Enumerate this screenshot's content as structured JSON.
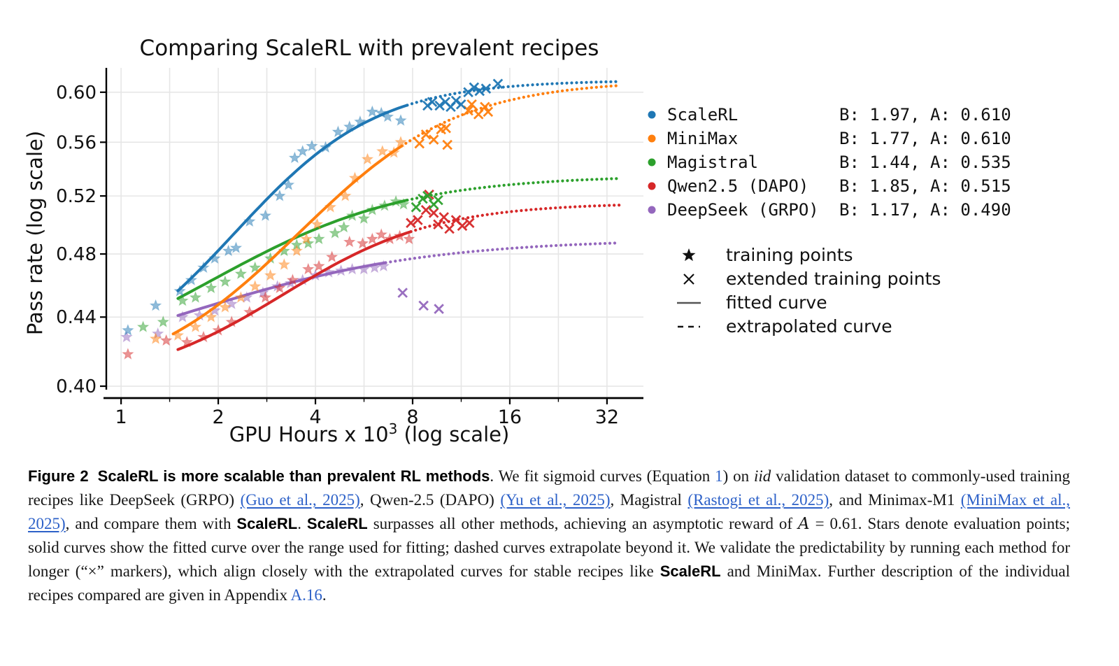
{
  "figure": {
    "title": "Comparing ScaleRL with prevalent recipes",
    "y_label": "Pass rate (log scale)",
    "x_label": {
      "main": "GPU Hours x 10",
      "sup": "3",
      "suffix": " (log scale)"
    }
  },
  "chart_data": {
    "type": "line+scatter",
    "title": "Comparing ScaleRL with prevalent recipes",
    "xlabel": "GPU Hours x 10^3 (log scale)",
    "ylabel": "Pass rate (log scale)",
    "log_x": true,
    "log_y": true,
    "x_range": [
      0.9,
      41.5
    ],
    "y_range": [
      0.3935,
      0.6205
    ],
    "x_ticks": [
      1,
      2,
      4,
      8,
      16,
      32
    ],
    "x_tick_labels": [
      "1",
      "2",
      "4",
      "8",
      "16",
      "32"
    ],
    "x_minor_gridlines": [
      1,
      1.414,
      2,
      2.828,
      4,
      5.657,
      8,
      11.314,
      16,
      22.627,
      32
    ],
    "y_ticks": [
      0.4,
      0.44,
      0.48,
      0.52,
      0.56,
      0.6
    ],
    "y_tick_labels": [
      "0.40",
      "0.44",
      "0.48",
      "0.52",
      "0.56",
      "0.60"
    ],
    "grid": true,
    "legend_position": "right",
    "series": [
      {
        "name": "ScaleRL",
        "params_label": "B: 1.97, A: 0.610",
        "B": 1.97,
        "A": 0.61,
        "color": "#1f77b4",
        "sigmoid": {
          "R0": 0.4,
          "Cmid": 2.5
        },
        "fit_range": [
          1.5,
          7.7
        ],
        "extrapolate_to": 35,
        "training_points": [
          [
            1.05,
            0.432
          ],
          [
            1.28,
            0.447
          ],
          [
            1.52,
            0.456
          ],
          [
            1.65,
            0.463
          ],
          [
            1.8,
            0.471
          ],
          [
            1.95,
            0.477
          ],
          [
            2.15,
            0.482
          ],
          [
            2.27,
            0.484
          ],
          [
            2.5,
            0.502
          ],
          [
            2.8,
            0.506
          ],
          [
            3.1,
            0.52
          ],
          [
            3.3,
            0.528
          ],
          [
            3.45,
            0.548
          ],
          [
            3.65,
            0.553
          ],
          [
            3.9,
            0.557
          ],
          [
            4.3,
            0.556
          ],
          [
            4.7,
            0.568
          ],
          [
            5.1,
            0.572
          ],
          [
            5.5,
            0.576
          ],
          [
            6.0,
            0.584
          ],
          [
            6.4,
            0.583
          ],
          [
            6.7,
            0.58
          ],
          [
            7.35,
            0.577
          ]
        ],
        "extended_points": [
          [
            8.9,
            0.589
          ],
          [
            9.2,
            0.592
          ],
          [
            9.7,
            0.589
          ],
          [
            10.1,
            0.592
          ],
          [
            10.5,
            0.588
          ],
          [
            10.9,
            0.593
          ],
          [
            11.3,
            0.59
          ],
          [
            11.9,
            0.6
          ],
          [
            12.4,
            0.604
          ],
          [
            12.9,
            0.601
          ],
          [
            13.5,
            0.603
          ],
          [
            14.7,
            0.607
          ]
        ]
      },
      {
        "name": "MiniMax",
        "params_label": "B: 1.77, A: 0.610",
        "B": 1.77,
        "A": 0.61,
        "color": "#ff7f0e",
        "sigmoid": {
          "R0": 0.4,
          "Cmid": 4.0
        },
        "fit_range": [
          1.45,
          7.4
        ],
        "extrapolate_to": 35,
        "training_points": [
          [
            1.28,
            0.427
          ],
          [
            1.5,
            0.429
          ],
          [
            1.7,
            0.434
          ],
          [
            1.9,
            0.44
          ],
          [
            2.1,
            0.446
          ],
          [
            2.35,
            0.452
          ],
          [
            2.6,
            0.459
          ],
          [
            2.9,
            0.466
          ],
          [
            3.2,
            0.473
          ],
          [
            3.5,
            0.482
          ],
          [
            3.75,
            0.49
          ],
          [
            4.05,
            0.5
          ],
          [
            4.45,
            0.512
          ],
          [
            4.95,
            0.52
          ],
          [
            5.3,
            0.533
          ],
          [
            5.8,
            0.547
          ],
          [
            6.45,
            0.553
          ],
          [
            7.0,
            0.552
          ],
          [
            7.35,
            0.56
          ]
        ],
        "extended_points": [
          [
            8.4,
            0.559
          ],
          [
            8.8,
            0.566
          ],
          [
            9.3,
            0.562
          ],
          [
            9.8,
            0.57
          ],
          [
            10.15,
            0.571
          ],
          [
            10.25,
            0.558
          ],
          [
            11.9,
            0.585
          ],
          [
            12.2,
            0.59
          ],
          [
            12.8,
            0.582
          ],
          [
            13.4,
            0.588
          ],
          [
            13.7,
            0.584
          ]
        ]
      },
      {
        "name": "Magistral",
        "params_label": "B: 1.44, A: 0.535",
        "B": 1.44,
        "A": 0.535,
        "color": "#2ca02c",
        "sigmoid": {
          "R0": 0.4,
          "Cmid": 2.1
        },
        "fit_range": [
          1.5,
          7.7
        ],
        "extrapolate_to": 35,
        "training_points": [
          [
            1.17,
            0.434
          ],
          [
            1.35,
            0.437
          ],
          [
            1.55,
            0.45
          ],
          [
            1.7,
            0.452
          ],
          [
            1.9,
            0.458
          ],
          [
            2.1,
            0.462
          ],
          [
            2.35,
            0.467
          ],
          [
            2.6,
            0.471
          ],
          [
            2.9,
            0.477
          ],
          [
            3.2,
            0.482
          ],
          [
            3.5,
            0.486
          ],
          [
            3.8,
            0.487
          ],
          [
            4.1,
            0.49
          ],
          [
            4.6,
            0.494
          ],
          [
            4.9,
            0.498
          ],
          [
            5.2,
            0.506
          ],
          [
            5.65,
            0.504
          ],
          [
            6.0,
            0.51
          ],
          [
            6.55,
            0.513
          ],
          [
            7.1,
            0.516
          ],
          [
            7.5,
            0.514
          ]
        ],
        "extended_points": [
          [
            8.2,
            0.512
          ],
          [
            8.6,
            0.518
          ],
          [
            8.9,
            0.52
          ],
          [
            9.3,
            0.514
          ],
          [
            9.6,
            0.517
          ]
        ]
      },
      {
        "name": "Qwen2.5 (DAPO)",
        "params_label": "B: 1.85, A: 0.515",
        "B": 1.85,
        "A": 0.515,
        "color": "#d62728",
        "sigmoid": {
          "R0": 0.4,
          "Cmid": 3.4
        },
        "fit_range": [
          1.5,
          7.9
        ],
        "extrapolate_to": 35,
        "training_points": [
          [
            1.05,
            0.418
          ],
          [
            1.38,
            0.426
          ],
          [
            1.6,
            0.425
          ],
          [
            1.8,
            0.428
          ],
          [
            2.0,
            0.432
          ],
          [
            2.2,
            0.437
          ],
          [
            2.5,
            0.443
          ],
          [
            2.8,
            0.452
          ],
          [
            3.1,
            0.458
          ],
          [
            3.4,
            0.463
          ],
          [
            3.8,
            0.47
          ],
          [
            4.1,
            0.472
          ],
          [
            4.5,
            0.478
          ],
          [
            5.1,
            0.488
          ],
          [
            5.6,
            0.487
          ],
          [
            6.0,
            0.49
          ],
          [
            6.4,
            0.493
          ],
          [
            6.8,
            0.49
          ],
          [
            7.3,
            0.492
          ],
          [
            7.8,
            0.49
          ]
        ],
        "extended_points": [
          [
            7.9,
            0.501
          ],
          [
            8.3,
            0.503
          ],
          [
            8.8,
            0.51
          ],
          [
            9.0,
            0.521
          ],
          [
            9.3,
            0.508
          ],
          [
            9.6,
            0.5
          ],
          [
            10.0,
            0.505
          ],
          [
            10.4,
            0.497
          ],
          [
            10.9,
            0.503
          ],
          [
            11.4,
            0.499
          ],
          [
            12.0,
            0.501
          ]
        ]
      },
      {
        "name": "DeepSeek (GRPO)",
        "params_label": "B: 1.17, A: 0.490",
        "B": 1.17,
        "A": 0.49,
        "color": "#9467bd",
        "sigmoid": {
          "R0": 0.4,
          "Cmid": 1.75
        },
        "fit_range": [
          1.5,
          6.6
        ],
        "extrapolate_to": 35,
        "training_points": [
          [
            1.04,
            0.428
          ],
          [
            1.3,
            0.43
          ],
          [
            1.55,
            0.44
          ],
          [
            1.75,
            0.441
          ],
          [
            1.95,
            0.444
          ],
          [
            2.2,
            0.448
          ],
          [
            2.45,
            0.452
          ],
          [
            2.75,
            0.455
          ],
          [
            3.05,
            0.459
          ],
          [
            3.35,
            0.461
          ],
          [
            3.65,
            0.463
          ],
          [
            4.0,
            0.466
          ],
          [
            4.4,
            0.468
          ],
          [
            4.8,
            0.469
          ],
          [
            5.2,
            0.47
          ],
          [
            5.65,
            0.47
          ],
          [
            6.1,
            0.471
          ],
          [
            6.5,
            0.472
          ]
        ],
        "extended_points": [
          [
            7.45,
            0.455
          ],
          [
            8.65,
            0.447
          ],
          [
            9.65,
            0.445
          ]
        ]
      }
    ],
    "legend_markers": [
      {
        "glyph": "star",
        "label": "training points"
      },
      {
        "glyph": "x",
        "label": "extended training points"
      },
      {
        "glyph": "solid-line",
        "label": "fitted curve"
      },
      {
        "glyph": "dashed-line",
        "label": "extrapolated curve"
      }
    ]
  },
  "caption": {
    "segments": [
      {
        "text": "Figure 2",
        "style": "label"
      },
      {
        "text": "ScaleRL is more scalable than prevalent RL methods",
        "style": "boldsans"
      },
      {
        "text": ". We fit sigmoid curves (Equation ",
        "style": "serif"
      },
      {
        "text": "1",
        "style": "link"
      },
      {
        "text": ") on ",
        "style": "serif"
      },
      {
        "text": "iid",
        "style": "italic"
      },
      {
        "text": " validation dataset to commonly-used training recipes like DeepSeek (GRPO) ",
        "style": "serif"
      },
      {
        "text": "(Guo et al., 2025)",
        "style": "linku"
      },
      {
        "text": ", Qwen-2.5 (DAPO) ",
        "style": "serif"
      },
      {
        "text": "(Yu et al., 2025)",
        "style": "linku"
      },
      {
        "text": ", Magistral ",
        "style": "serif"
      },
      {
        "text": "(Rastogi et al., 2025)",
        "style": "linku"
      },
      {
        "text": ", and Minimax-M1 ",
        "style": "serif"
      },
      {
        "text": "(MiniMax et al., 2025)",
        "style": "linku"
      },
      {
        "text": ", and compare them with ",
        "style": "serif"
      },
      {
        "text": "ScaleRL",
        "style": "boldsans"
      },
      {
        "text": ". ",
        "style": "serif"
      },
      {
        "text": "ScaleRL",
        "style": "boldsans"
      },
      {
        "text": " surpasses all other methods, achieving an asymptotic reward of ",
        "style": "serif"
      },
      {
        "text": "A",
        "style": "math"
      },
      {
        "text": " = 0.61. Stars denote evaluation points; solid curves show the fitted curve over the range used for fitting; dashed curves extrapolate beyond it. We validate the predictability by running each method for longer (“×” markers), which align closely with the extrapolated curves for stable recipes like ",
        "style": "serif"
      },
      {
        "text": "ScaleRL",
        "style": "boldsans"
      },
      {
        "text": " and MiniMax. Further description of the individual recipes compared are given in Appendix ",
        "style": "serif"
      },
      {
        "text": "A.16",
        "style": "link"
      },
      {
        "text": ".",
        "style": "serif"
      }
    ]
  }
}
